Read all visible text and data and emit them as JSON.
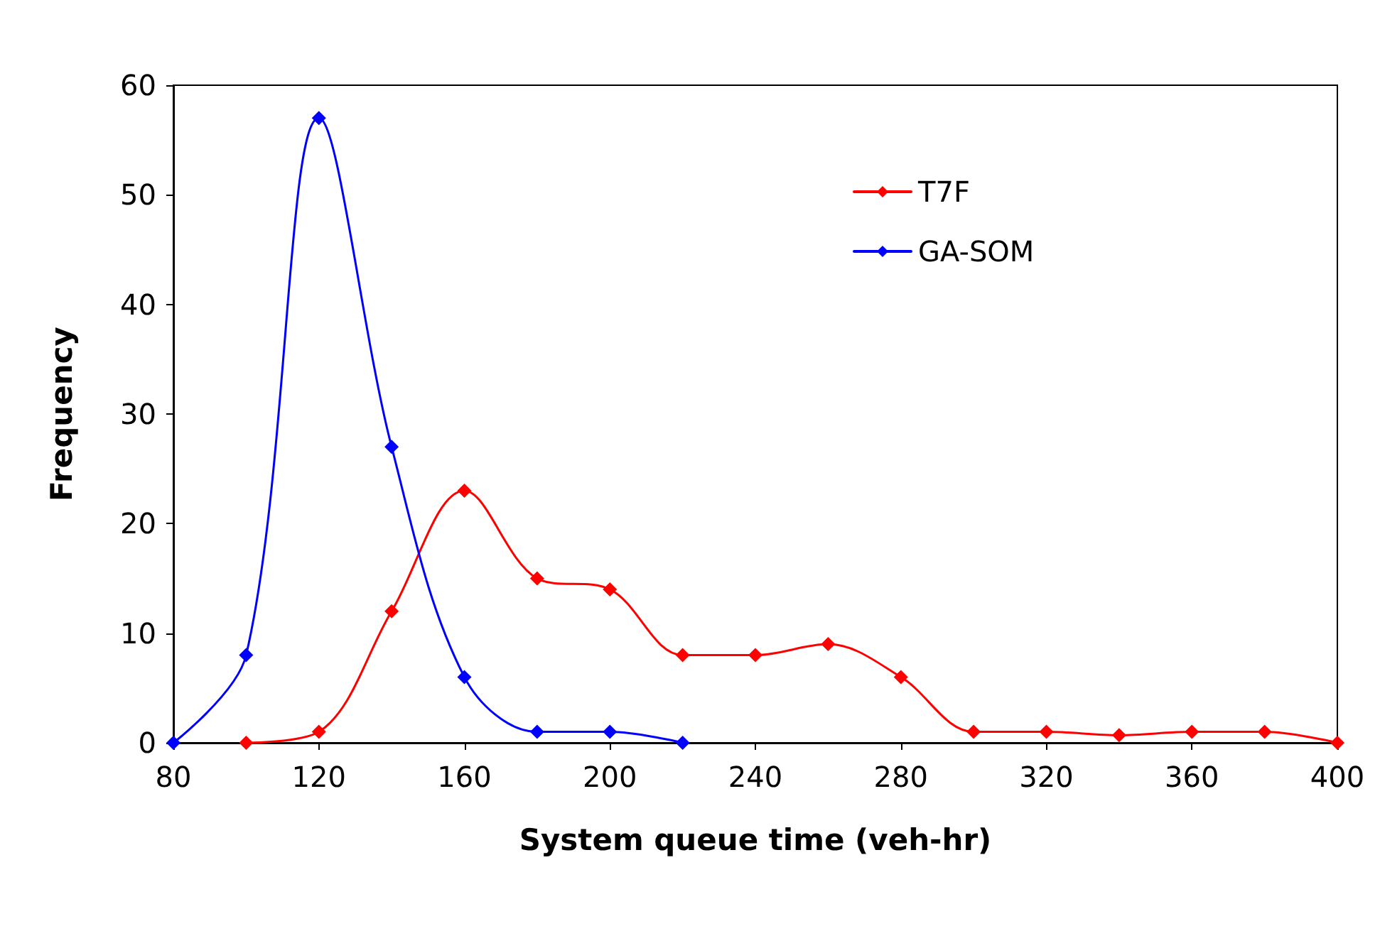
{
  "chart_data": {
    "type": "line",
    "xlabel": "System queue time (veh-hr)",
    "ylabel": "Frequency",
    "xlim": [
      80,
      400
    ],
    "xticks": [
      80,
      120,
      160,
      200,
      240,
      280,
      320,
      360,
      400
    ],
    "ylim": [
      0,
      60
    ],
    "yticks": [
      0,
      10,
      20,
      30,
      40,
      50,
      60
    ],
    "series": [
      {
        "name": "T7F",
        "color": "#ff0000",
        "x": [
          100,
          120,
          140,
          160,
          180,
          200,
          220,
          240,
          260,
          280,
          300,
          320,
          340,
          360,
          380,
          400
        ],
        "values": [
          0,
          1,
          12,
          23,
          15,
          14,
          8,
          8,
          9,
          6,
          1,
          1,
          0.7,
          1,
          1,
          0
        ]
      },
      {
        "name": "GA-SOM",
        "color": "#0000ff",
        "x": [
          80,
          100,
          120,
          140,
          160,
          180,
          200,
          220
        ],
        "values": [
          0,
          8,
          57,
          27,
          6,
          1,
          1,
          0
        ]
      }
    ],
    "marker": "diamond",
    "line_style": "solid",
    "grid": false,
    "legend": "top right"
  }
}
